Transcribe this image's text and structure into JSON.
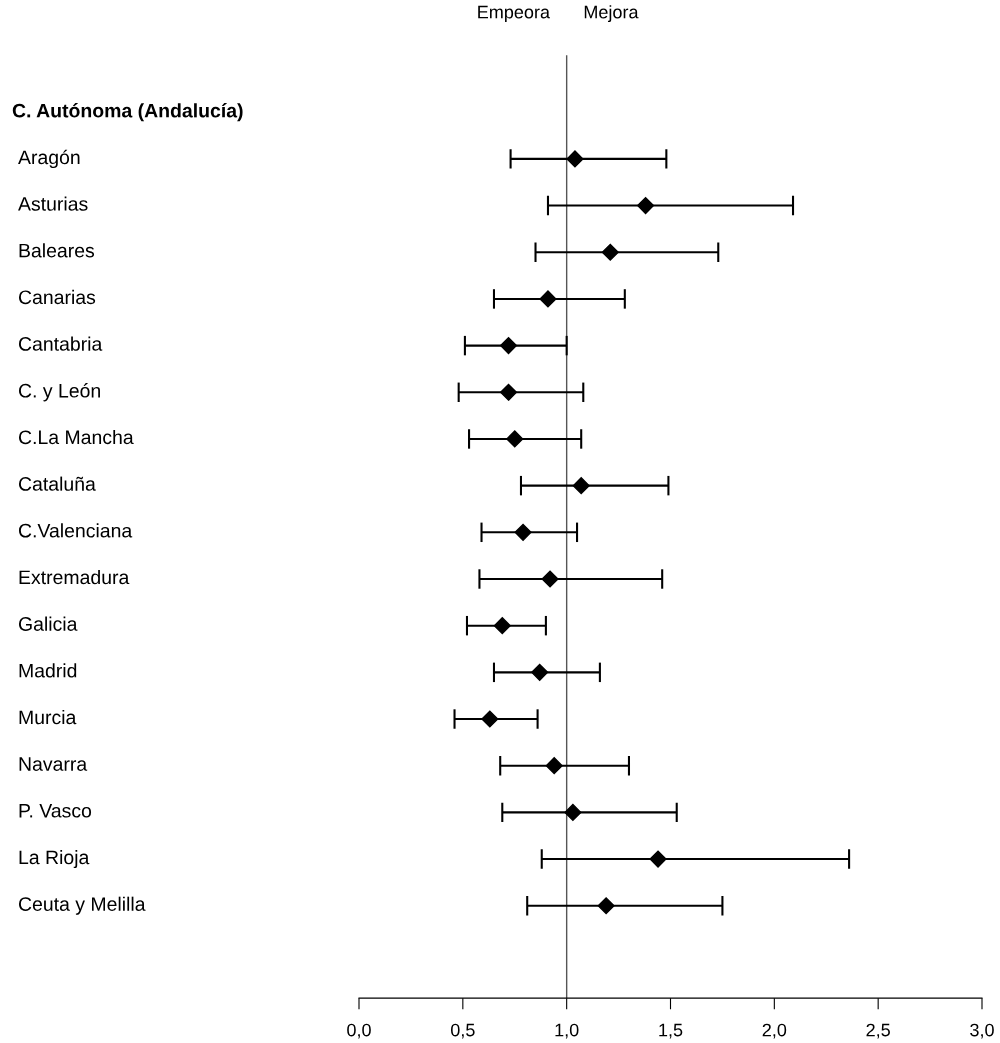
{
  "chart_data": {
    "type": "scatter",
    "orientation": "horizontal",
    "marker": "diamond",
    "color": "#000000",
    "categories": [
      "C. Autónoma (Andalucía)",
      "Aragón",
      "Asturias",
      "Baleares",
      "Canarias",
      "Cantabria",
      "C. y León",
      "C.La Mancha",
      "Cataluña",
      "C.Valenciana",
      "Extremadura",
      "Galicia",
      "Madrid",
      "Murcia",
      "Navarra",
      "P. Vasco",
      "La Rioja",
      "Ceuta y Melilla"
    ],
    "values": [
      null,
      1.04,
      1.38,
      1.21,
      0.91,
      0.72,
      0.72,
      0.75,
      1.07,
      0.79,
      0.92,
      0.69,
      0.87,
      0.63,
      0.94,
      1.03,
      1.44,
      1.19
    ],
    "errors": [
      null,
      [
        0.73,
        1.48
      ],
      [
        0.91,
        2.09
      ],
      [
        0.85,
        1.73
      ],
      [
        0.65,
        1.28
      ],
      [
        0.51,
        1.0
      ],
      [
        0.48,
        1.08
      ],
      [
        0.53,
        1.07
      ],
      [
        0.78,
        1.49
      ],
      [
        0.59,
        1.05
      ],
      [
        0.58,
        1.46
      ],
      [
        0.52,
        0.9
      ],
      [
        0.65,
        1.16
      ],
      [
        0.46,
        0.86
      ],
      [
        0.68,
        1.3
      ],
      [
        0.69,
        1.53
      ],
      [
        0.88,
        2.36
      ],
      [
        0.81,
        1.75
      ]
    ],
    "xlim": [
      0,
      3
    ],
    "xticks": [
      {
        "value": 0,
        "label": "0,0"
      },
      {
        "value": 0.5,
        "label": "0,5"
      },
      {
        "value": 1,
        "label": "1,0"
      },
      {
        "value": 1.5,
        "label": "1,5"
      },
      {
        "value": 2,
        "label": "2,0"
      },
      {
        "value": 2.5,
        "label": "2,5"
      },
      {
        "value": 3,
        "label": "3,0"
      }
    ],
    "ref_lines": [
      {
        "axis": "x",
        "value": 1,
        "color": "#555555"
      }
    ],
    "annotations": [
      "Empeora",
      "Mejora"
    ],
    "grid": false,
    "legend": false
  }
}
